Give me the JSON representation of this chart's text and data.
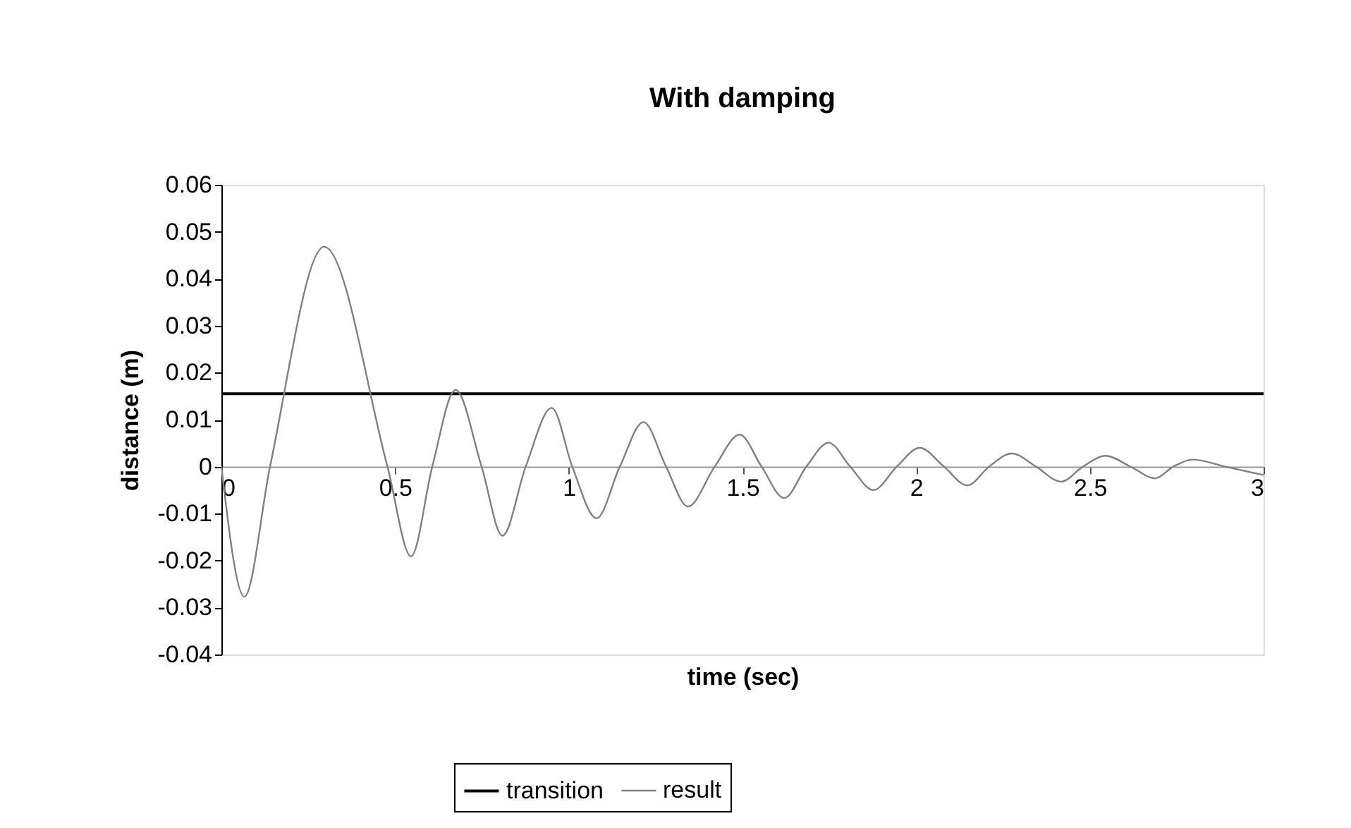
{
  "chart_data": {
    "type": "line",
    "title": "With damping",
    "xlabel": "time (sec)",
    "ylabel": "distance (m)",
    "xlim": [
      0,
      3
    ],
    "xticks": [
      0,
      0.5,
      1,
      1.5,
      2,
      2.5,
      3
    ],
    "ylim": [
      -0.04,
      0.06
    ],
    "yticks": [
      -0.04,
      -0.03,
      -0.02,
      -0.01,
      0,
      0.01,
      0.02,
      0.03,
      0.04,
      0.05,
      0.06
    ],
    "grid": false,
    "legend": "bottom",
    "marker": "none",
    "line_style": "solid",
    "series": [
      {
        "name": "transition",
        "color": "#000000",
        "x": [
          0,
          3
        ],
        "values": [
          0.0155,
          0.0155
        ]
      },
      {
        "name": "result",
        "color": "#808080",
        "x": [
          0,
          0.066,
          0.14,
          0.296,
          0.478,
          0.546,
          0.607,
          0.674,
          0.749,
          0.809,
          0.876,
          0.951,
          1.01,
          1.08,
          1.147,
          1.215,
          1.28,
          1.343,
          1.42,
          1.492,
          1.555,
          1.62,
          1.684,
          1.748,
          1.81,
          1.877,
          1.944,
          2.01,
          2.08,
          2.147,
          2.21,
          2.275,
          2.345,
          2.417,
          2.48,
          2.545,
          2.617,
          2.688,
          2.74,
          2.796,
          2.89,
          3
        ],
        "values": [
          0,
          -0.0277,
          0,
          0.0468,
          0,
          -0.0191,
          0,
          0.0163,
          0,
          -0.0147,
          0,
          0.0125,
          0,
          -0.011,
          0,
          0.0095,
          0,
          -0.0085,
          0,
          0.0068,
          0,
          -0.0067,
          0,
          0.0051,
          0,
          -0.005,
          0,
          0.004,
          0,
          -0.004,
          0,
          0.0028,
          0,
          -0.0032,
          0,
          0.0023,
          0,
          -0.0025,
          0,
          0.0015,
          0,
          -0.0018
        ]
      }
    ]
  }
}
